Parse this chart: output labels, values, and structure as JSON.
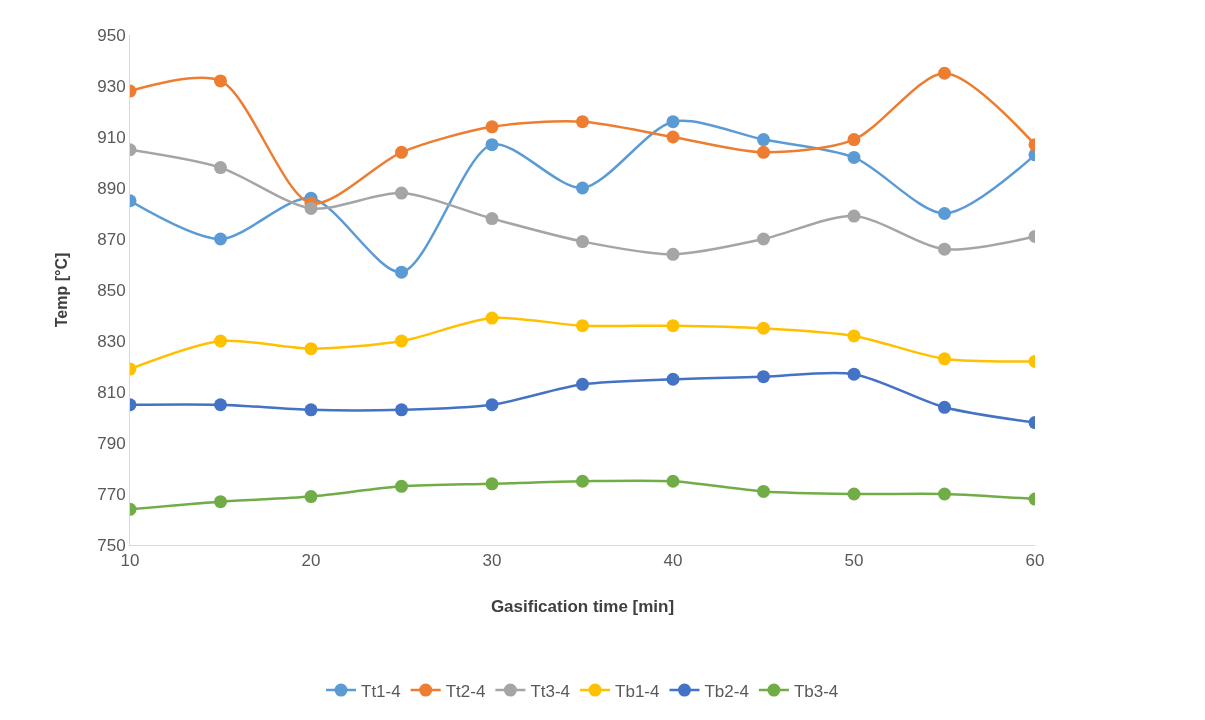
{
  "chart_data": {
    "type": "line",
    "xlabel": "Gasification time [min]",
    "ylabel": "Temp [°C]",
    "x": [
      10,
      15,
      20,
      25,
      30,
      35,
      40,
      45,
      50,
      55,
      60
    ],
    "xlim": [
      10,
      60
    ],
    "xticks": [
      10,
      20,
      30,
      40,
      50,
      60
    ],
    "ylim": [
      750,
      950
    ],
    "yticks": [
      750,
      770,
      790,
      810,
      830,
      850,
      870,
      890,
      910,
      930,
      950
    ],
    "grid": false,
    "legend": "bottom",
    "marker": "circle",
    "line_style": "solid",
    "series": [
      {
        "name": "Tt1-4",
        "color": "#5b9bd5",
        "values": [
          885,
          870,
          886,
          857,
          907,
          890,
          916,
          909,
          902,
          880,
          903
        ]
      },
      {
        "name": "Tt2-4",
        "color": "#ed7d31",
        "values": [
          928,
          932,
          884,
          904,
          914,
          916,
          910,
          904,
          909,
          935,
          907
        ]
      },
      {
        "name": "Tt3-4",
        "color": "#a5a5a5",
        "values": [
          905,
          898,
          882,
          888,
          878,
          869,
          864,
          870,
          879,
          866,
          871
        ]
      },
      {
        "name": "Tb1-4",
        "color": "#ffc000",
        "values": [
          819,
          830,
          827,
          830,
          839,
          836,
          836,
          835,
          832,
          823,
          822
        ]
      },
      {
        "name": "Tb2-4",
        "color": "#4472c4",
        "values": [
          805,
          805,
          803,
          803,
          805,
          813,
          815,
          816,
          817,
          804,
          798
        ]
      },
      {
        "name": "Tb3-4",
        "color": "#70ad47",
        "values": [
          764,
          767,
          769,
          773,
          774,
          775,
          775,
          771,
          770,
          770,
          768
        ]
      }
    ]
  }
}
